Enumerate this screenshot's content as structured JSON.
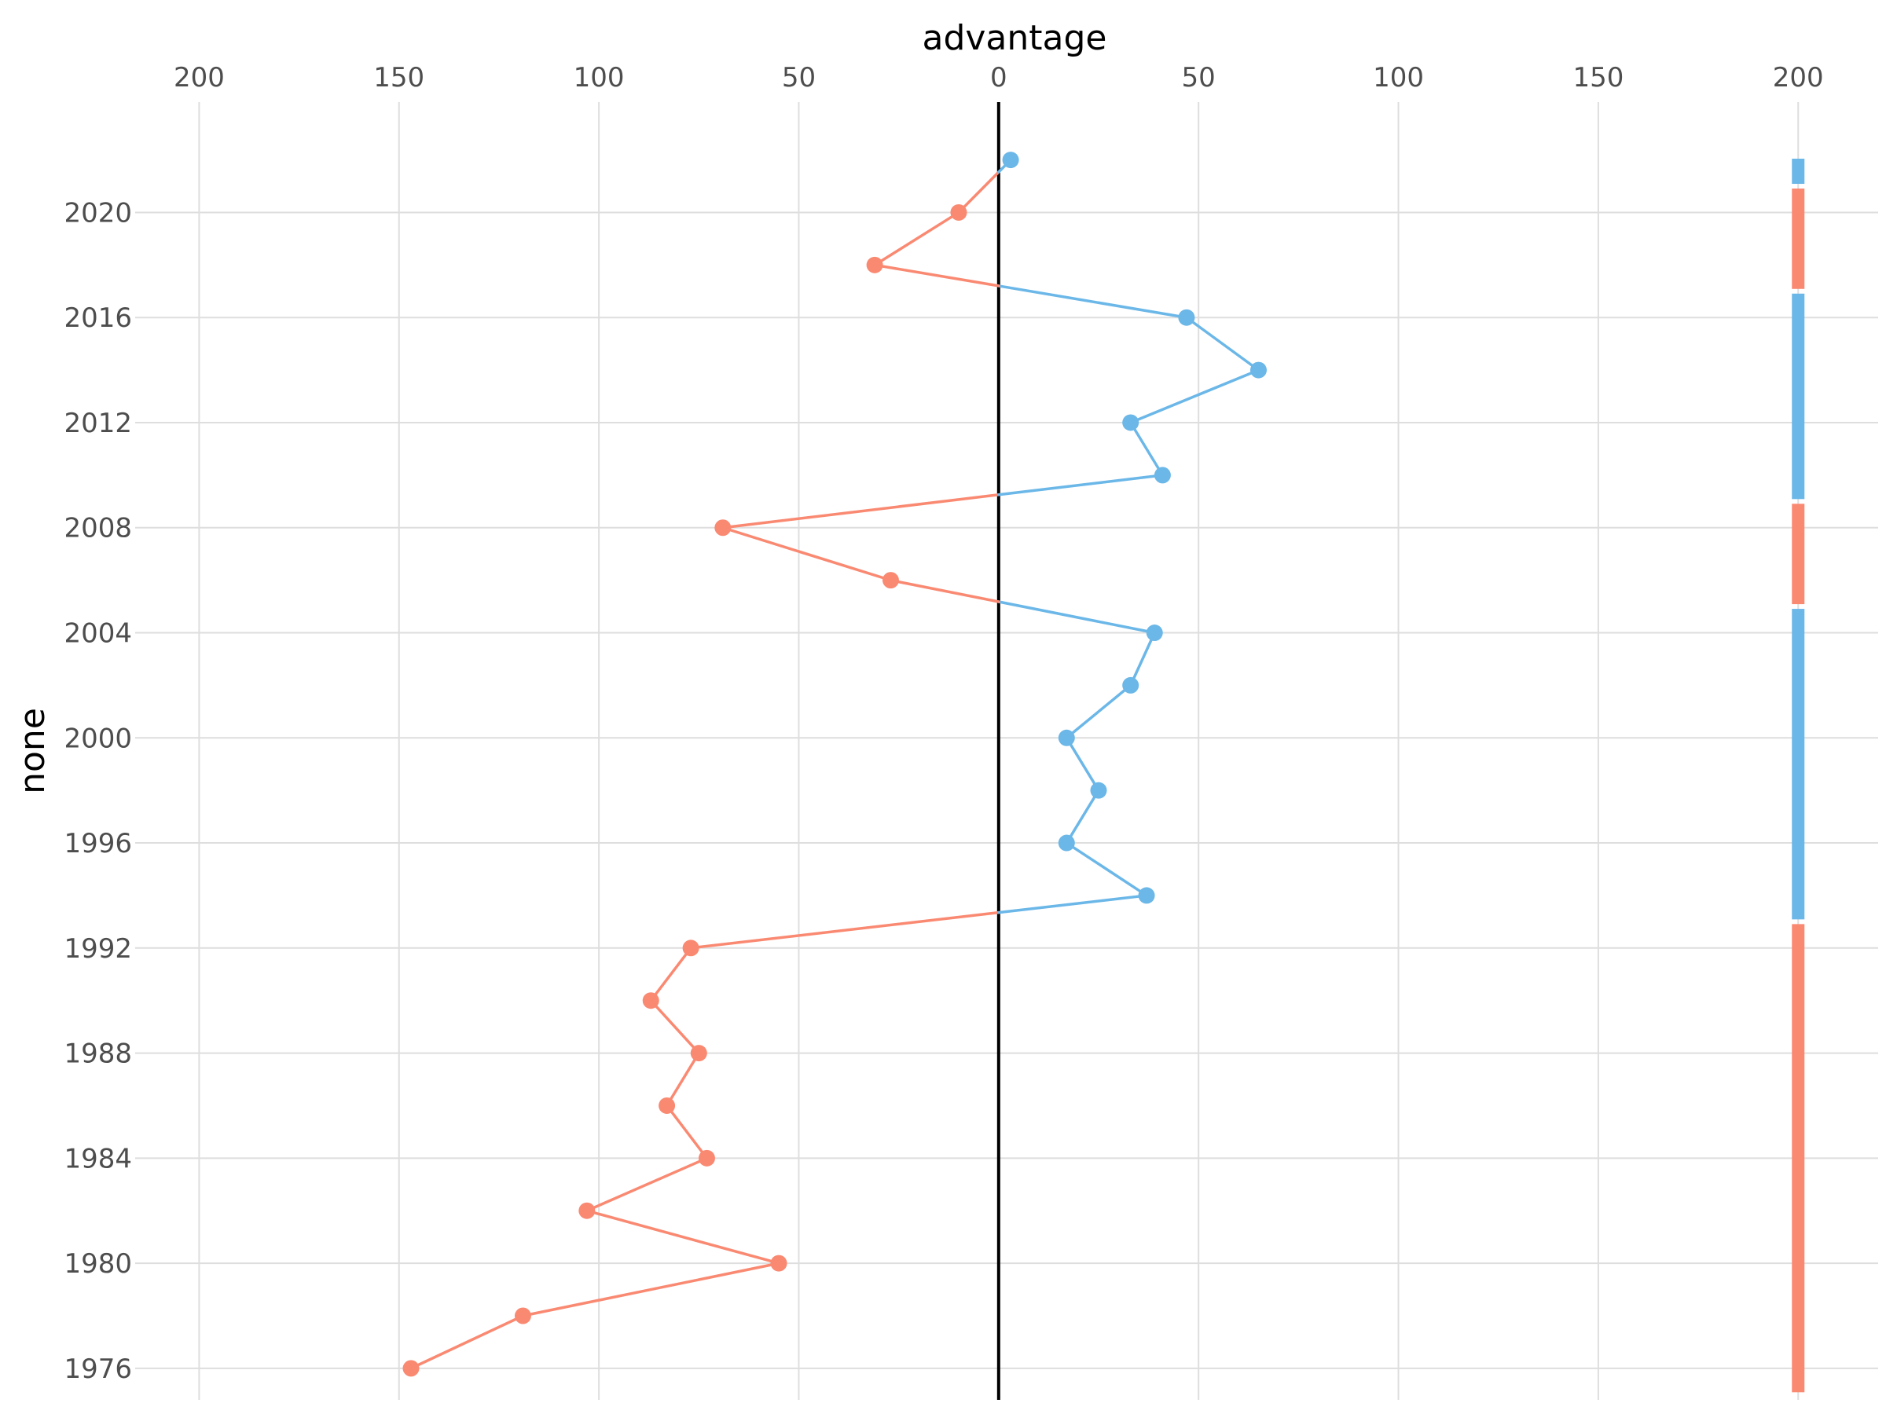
{
  "chart_data": {
    "type": "line",
    "title": "",
    "xlabel": "advantage",
    "ylabel": "none",
    "x_axis_position": "top",
    "xlim": [
      -216,
      220
    ],
    "ylim": [
      1974.8,
      2024.2
    ],
    "x_ticks": [
      -200,
      -150,
      -100,
      -50,
      0,
      50,
      100,
      150,
      200
    ],
    "x_tick_labels": [
      "200",
      "150",
      "100",
      "50",
      "0",
      "50",
      "100",
      "150",
      "200"
    ],
    "y_ticks": [
      1976,
      1980,
      1984,
      1988,
      1992,
      1996,
      2000,
      2004,
      2008,
      2012,
      2016,
      2020
    ],
    "y_tick_labels": [
      "1976",
      "1980",
      "1984",
      "1988",
      "1992",
      "1996",
      "2000",
      "2004",
      "2008",
      "2012",
      "2016",
      "2020"
    ],
    "grid": true,
    "legend": "none",
    "reference_line_x": 0,
    "colors": {
      "positive": "#6bb7e8",
      "negative": "#fa8972",
      "zero_line": "#000000",
      "grid": "#dedede"
    },
    "strip_x": 200,
    "points": [
      {
        "year": 1976,
        "advantage": -147
      },
      {
        "year": 1978,
        "advantage": -119
      },
      {
        "year": 1980,
        "advantage": -55
      },
      {
        "year": 1982,
        "advantage": -103
      },
      {
        "year": 1984,
        "advantage": -73
      },
      {
        "year": 1986,
        "advantage": -83
      },
      {
        "year": 1988,
        "advantage": -75
      },
      {
        "year": 1990,
        "advantage": -87
      },
      {
        "year": 1992,
        "advantage": -77
      },
      {
        "year": 1994,
        "advantage": 37
      },
      {
        "year": 1996,
        "advantage": 17
      },
      {
        "year": 1998,
        "advantage": 25
      },
      {
        "year": 2000,
        "advantage": 17
      },
      {
        "year": 2002,
        "advantage": 33
      },
      {
        "year": 2004,
        "advantage": 39
      },
      {
        "year": 2006,
        "advantage": -27
      },
      {
        "year": 2008,
        "advantage": -69
      },
      {
        "year": 2010,
        "advantage": 41
      },
      {
        "year": 2012,
        "advantage": 33
      },
      {
        "year": 2014,
        "advantage": 65
      },
      {
        "year": 2016,
        "advantage": 47
      },
      {
        "year": 2018,
        "advantage": -31
      },
      {
        "year": 2020,
        "advantage": -10
      },
      {
        "year": 2022,
        "advantage": 3
      }
    ]
  }
}
